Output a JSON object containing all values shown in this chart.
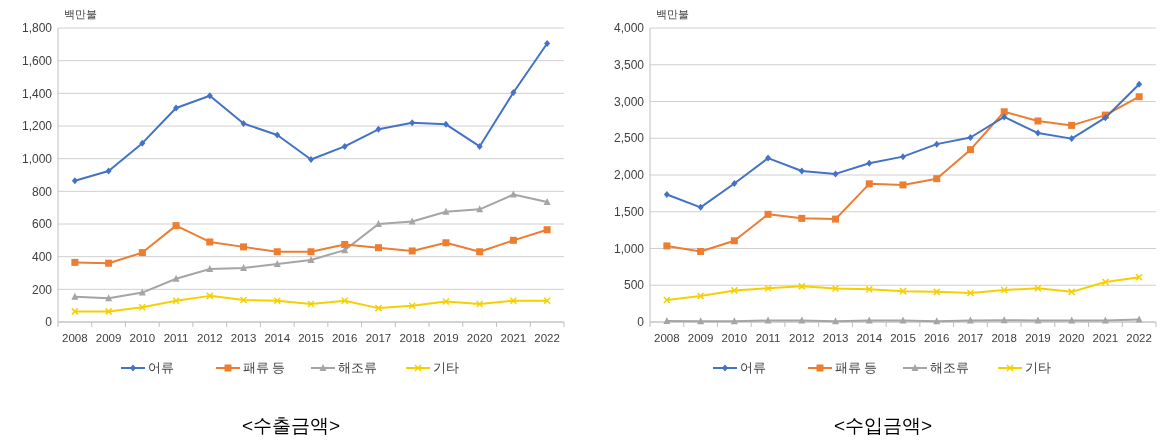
{
  "chart_data": [
    {
      "type": "line",
      "title": "<수출금액>",
      "ylabel": "백만불",
      "categories": [
        "2008",
        "2009",
        "2010",
        "2011",
        "2012",
        "2013",
        "2014",
        "2015",
        "2016",
        "2017",
        "2018",
        "2019",
        "2020",
        "2021",
        "2022"
      ],
      "ylim": [
        0,
        1800
      ],
      "yticks": [
        0,
        200,
        400,
        600,
        800,
        {
          "value": 1000,
          "label": "1,000"
        },
        {
          "value": 1200,
          "label": "1,200"
        },
        {
          "value": 1400,
          "label": "1,400"
        },
        {
          "value": 1600,
          "label": "1,600"
        },
        {
          "value": 1800,
          "label": "1,800"
        }
      ],
      "grid": "y",
      "legend": "bottom",
      "series": [
        {
          "name": "어류",
          "color": "#4472c4",
          "marker": "diamond",
          "values": [
            865,
            925,
            1095,
            1310,
            1385,
            1215,
            1145,
            995,
            1075,
            1180,
            1220,
            1210,
            1075,
            1405,
            1705
          ]
        },
        {
          "name": "패류 등",
          "color": "#ed7d31",
          "marker": "square",
          "values": [
            365,
            360,
            425,
            590,
            490,
            460,
            430,
            430,
            475,
            455,
            435,
            485,
            430,
            500,
            565
          ]
        },
        {
          "name": "해조류",
          "color": "#a5a5a5",
          "marker": "triangle",
          "values": [
            155,
            145,
            180,
            265,
            325,
            330,
            355,
            380,
            440,
            600,
            615,
            675,
            690,
            780,
            735
          ]
        },
        {
          "name": "기타",
          "color": "#f5d000",
          "marker": "cross",
          "values": [
            65,
            65,
            90,
            130,
            160,
            135,
            130,
            110,
            130,
            85,
            100,
            125,
            110,
            130,
            130
          ]
        }
      ]
    },
    {
      "type": "line",
      "title": "<수입금액>",
      "ylabel": "백만불",
      "categories": [
        "2008",
        "2009",
        "2010",
        "2011",
        "2012",
        "2013",
        "2014",
        "2015",
        "2016",
        "2017",
        "2018",
        "2019",
        "2020",
        "2021",
        "2022"
      ],
      "ylim": [
        0,
        4000
      ],
      "yticks": [
        0,
        500,
        {
          "value": 1000,
          "label": "1,000"
        },
        {
          "value": 1500,
          "label": "1,500"
        },
        {
          "value": 2000,
          "label": "2,000"
        },
        {
          "value": 2500,
          "label": "2,500"
        },
        {
          "value": 3000,
          "label": "3,000"
        },
        {
          "value": 3500,
          "label": "3,500"
        },
        {
          "value": 4000,
          "label": "4,000"
        }
      ],
      "grid": "y",
      "legend": "bottom",
      "series": [
        {
          "name": "어류",
          "color": "#4472c4",
          "marker": "diamond",
          "values": [
            1735,
            1560,
            1885,
            2230,
            2055,
            2015,
            2160,
            2250,
            2420,
            2510,
            2790,
            2570,
            2495,
            2780,
            3235
          ]
        },
        {
          "name": "패류 등",
          "color": "#ed7d31",
          "marker": "square",
          "values": [
            1035,
            960,
            1105,
            1465,
            1410,
            1400,
            1880,
            1865,
            1950,
            2345,
            2860,
            2735,
            2675,
            2815,
            3065
          ]
        },
        {
          "name": "해조류",
          "color": "#a5a5a5",
          "marker": "triangle",
          "values": [
            15,
            10,
            10,
            20,
            20,
            10,
            20,
            20,
            10,
            20,
            25,
            20,
            20,
            20,
            35
          ]
        },
        {
          "name": "기타",
          "color": "#f5d000",
          "marker": "cross",
          "values": [
            300,
            355,
            430,
            460,
            485,
            455,
            445,
            420,
            410,
            395,
            435,
            460,
            410,
            545,
            610
          ]
        }
      ]
    }
  ]
}
